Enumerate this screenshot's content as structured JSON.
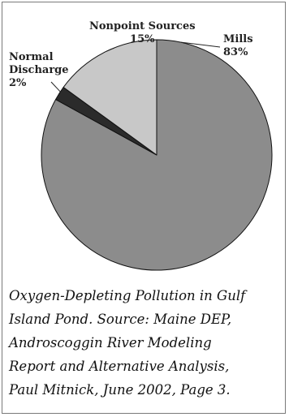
{
  "chart_data": {
    "type": "pie",
    "title": "",
    "slices": [
      {
        "label": "Mills",
        "value": 83,
        "value_label": "83%",
        "color": "#8c8c8c"
      },
      {
        "label": "Normal Discharge",
        "value": 2,
        "value_label": "2%",
        "color": "#2b2b2b"
      },
      {
        "label": "Nonpoint Sources",
        "value": 15,
        "value_label": "15%",
        "color": "#c8c8c8"
      }
    ],
    "start_angle": "12 o'clock, clockwise"
  },
  "labels": {
    "nonpoint_line1": "Nonpoint Sources",
    "nonpoint_line2": "15%",
    "mills_line1": "Mills",
    "mills_line2": "83%",
    "normal_line1": "Normal",
    "normal_line2": "Discharge",
    "normal_line3": "2%"
  },
  "caption": {
    "line1": "Oxygen-Depleting Pollution in Gulf",
    "line2": "Island Pond. Source: Maine DEP,",
    "line3": "Androscoggin River Modeling",
    "line4": "Report and Alternative Analysis,",
    "line5": "Paul Mitnick, June 2002, Page 3."
  }
}
